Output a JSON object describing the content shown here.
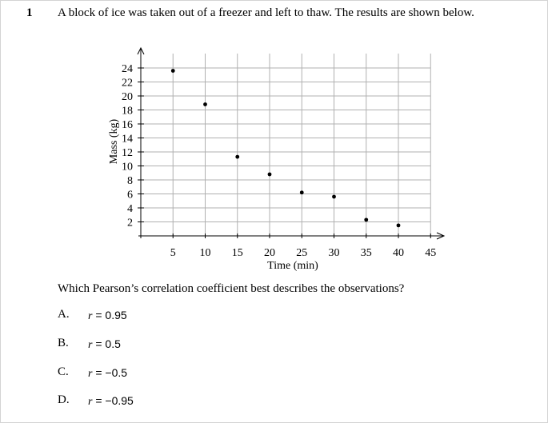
{
  "question": {
    "number": "1",
    "text": "A block of ice was taken out of a freezer and left to thaw. The results are shown below.",
    "prompt": "Which Pearson’s correlation coefficient best describes the observations?"
  },
  "options": [
    {
      "letter": "A.",
      "var": "r",
      "value": " = 0.95"
    },
    {
      "letter": "B.",
      "var": "r",
      "value": " = 0.5"
    },
    {
      "letter": "C.",
      "var": "r",
      "value": " = −0.5"
    },
    {
      "letter": "D.",
      "var": "r",
      "value": " = −0.95"
    }
  ],
  "chart_data": {
    "type": "scatter",
    "xlabel": "Time (min)",
    "ylabel": "Mass (kg)",
    "x": [
      5,
      10,
      15,
      20,
      25,
      30,
      35,
      40
    ],
    "y": [
      23.6,
      18.8,
      11.3,
      8.8,
      6.2,
      5.6,
      2.3,
      1.5
    ],
    "xticks": [
      5,
      10,
      15,
      20,
      25,
      30,
      35,
      40,
      45
    ],
    "yticks": [
      2,
      4,
      6,
      8,
      10,
      12,
      14,
      16,
      18,
      20,
      22,
      24
    ],
    "xlim": [
      0,
      45
    ],
    "ylim": [
      0,
      25
    ],
    "grid": true,
    "colors": {
      "ink": "#000000",
      "grid": "#b0b0b0",
      "background": "#ffffff"
    }
  }
}
